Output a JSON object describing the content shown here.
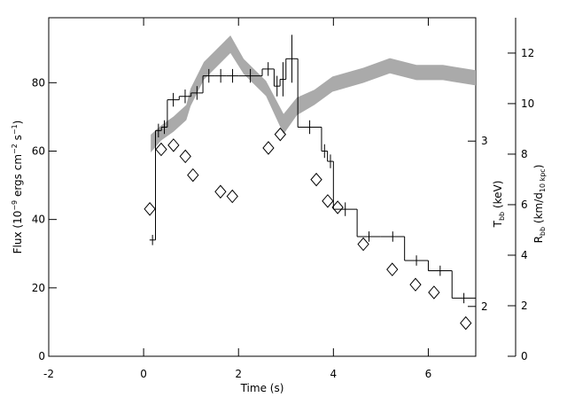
{
  "chart_data": {
    "type": "line",
    "xlabel": "Time (s)",
    "ylabel": {
      "parts": [
        "Flux (10",
        "−9",
        " ergs cm",
        "−2",
        " s",
        "−1",
        ")"
      ],
      "script": "sup"
    },
    "y3label": {
      "parts": [
        "T",
        "bb",
        " (keV)"
      ],
      "script": "sub"
    },
    "y2label": {
      "parts": [
        "R",
        "bb",
        " (km/d",
        "10 kpc",
        ")"
      ],
      "script": "sub"
    },
    "xlim": [
      -2,
      7
    ],
    "xticks": [
      -2,
      0,
      2,
      4,
      6
    ],
    "ylim": [
      0,
      99
    ],
    "yticks": [
      0,
      20,
      40,
      60,
      80
    ],
    "y3lim": [
      1.77,
      4.06
    ],
    "y3ticks": [
      2,
      3
    ],
    "y3log": true,
    "y2lim": [
      0,
      13.4
    ],
    "y2ticks": [
      0,
      2,
      4,
      6,
      8,
      10,
      12
    ],
    "series": [
      {
        "type": "step",
        "color": "#000000",
        "bins": [
          0.125,
          0.25,
          0.375,
          0.5,
          0.75,
          1.0,
          1.25,
          1.5,
          1.75,
          2.0,
          2.5,
          2.75,
          2.875,
          3.0,
          3.25,
          3.75,
          3.875,
          4.0,
          4.5,
          5.0,
          5.5,
          6.0,
          6.5,
          7.0
        ],
        "values": [
          34,
          66,
          67,
          75,
          76,
          77,
          82,
          82,
          82,
          82,
          84,
          79,
          81,
          87,
          67,
          60,
          57,
          43,
          35,
          35,
          28,
          25,
          17
        ],
        "errors": [
          1.5,
          2,
          2,
          2,
          2,
          2,
          2,
          2,
          2,
          2,
          2,
          3,
          5,
          7,
          2,
          2,
          2,
          2,
          1.5,
          1.5,
          1.5,
          1.5,
          1.5
        ]
      },
      {
        "type": "scatter",
        "axis": "y3",
        "color": "#000000",
        "x": [
          0.13,
          0.37,
          0.63,
          0.88,
          1.04,
          1.62,
          1.87,
          2.63,
          2.88,
          3.64,
          3.88,
          4.09,
          4.63,
          5.24,
          5.73,
          6.12,
          6.79
        ],
        "values": [
          2.54,
          2.94,
          2.97,
          2.89,
          2.76,
          2.65,
          2.62,
          2.95,
          3.05,
          2.73,
          2.59,
          2.55,
          2.33,
          2.19,
          2.11,
          2.07,
          1.92
        ]
      },
      {
        "type": "band",
        "axis": "y2",
        "color": "#aaaaaa",
        "x": [
          0.15,
          0.37,
          0.63,
          0.9,
          0.99,
          1.27,
          1.83,
          2.11,
          2.58,
          2.95,
          3.23,
          3.6,
          3.98,
          4.63,
          5.19,
          5.75,
          6.31,
          7.0
        ],
        "values": [
          8.42,
          8.84,
          9.19,
          9.65,
          10.25,
          11.3,
          12.35,
          11.47,
          10.6,
          9.19,
          9.89,
          10.25,
          10.77,
          11.12,
          11.5,
          11.23,
          11.23,
          11.02
        ],
        "errors": [
          0.35,
          0.3,
          0.3,
          0.3,
          0.35,
          0.35,
          0.35,
          0.3,
          0.3,
          0.4,
          0.35,
          0.3,
          0.3,
          0.3,
          0.3,
          0.3,
          0.3,
          0.3
        ]
      }
    ]
  }
}
